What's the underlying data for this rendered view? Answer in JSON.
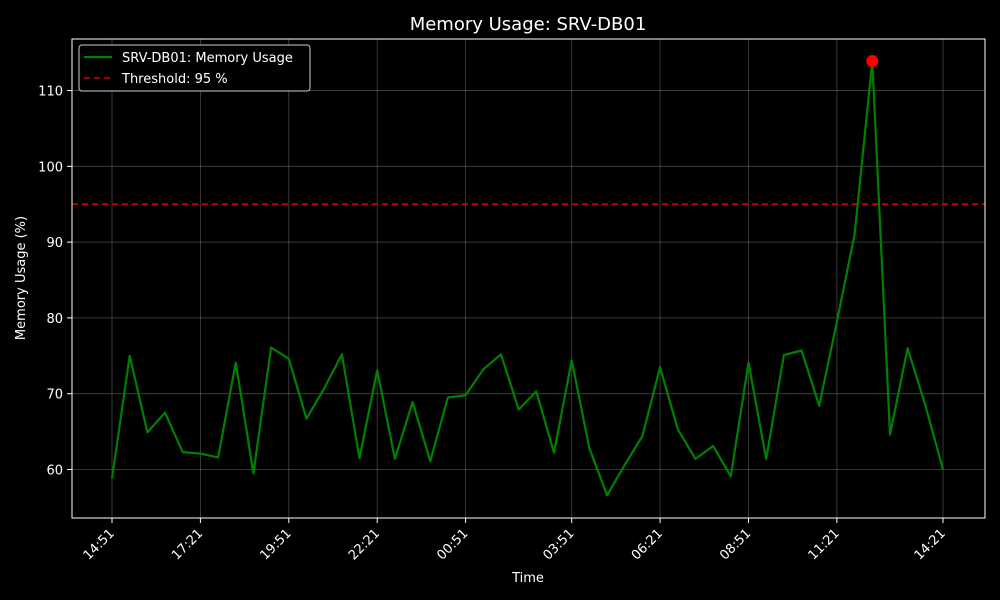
{
  "chart_data": {
    "type": "line",
    "title": "Memory Usage: SRV-DB01",
    "xlabel": "Time",
    "ylabel": "Memory Usage (%)",
    "ylim": [
      53.6,
      116.8
    ],
    "grid": true,
    "legend_position": "top-left",
    "x_tick_labels": [
      "14:51",
      "17:21",
      "19:51",
      "22:21",
      "00:51",
      "03:51",
      "06:21",
      "08:51",
      "11:21",
      "14:21"
    ],
    "x_tick_indices": [
      0,
      5,
      10,
      15,
      20,
      26,
      31,
      36,
      41,
      47
    ],
    "y_ticks": [
      60,
      70,
      80,
      90,
      100,
      110
    ],
    "series": [
      {
        "name": "SRV-DB01: Memory Usage",
        "color": "#008000",
        "values": [
          58.8,
          75.0,
          64.9,
          67.5,
          62.3,
          62.1,
          61.6,
          74.1,
          59.5,
          76.1,
          74.6,
          66.7,
          70.7,
          75.2,
          61.5,
          73.1,
          61.4,
          68.9,
          61.1,
          69.5,
          69.8,
          73.2,
          75.2,
          67.9,
          70.3,
          62.2,
          74.4,
          62.8,
          56.6,
          60.6,
          64.4,
          73.5,
          65.3,
          61.4,
          63.1,
          59.1,
          74.1,
          61.4,
          75.1,
          75.7,
          68.4,
          79.5,
          91.0,
          113.9,
          64.6,
          76.0,
          68.5,
          60.0
        ]
      }
    ],
    "threshold": {
      "label": "Threshold: 95 %",
      "value": 95,
      "color": "#cc0000"
    },
    "peak_marker": {
      "index": 43,
      "value": 113.9,
      "color": "#ff0000"
    },
    "colors": {
      "background": "#000000",
      "text": "#ffffff",
      "grid": "#808080"
    }
  }
}
